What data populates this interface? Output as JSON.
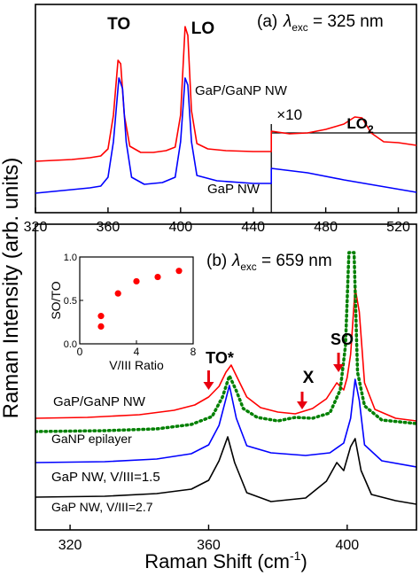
{
  "chart_data": [
    {
      "type": "line",
      "panel_label": "(a)",
      "excitation": {
        "symbol": "λ",
        "sub": "exc",
        "value": "= 325 nm"
      },
      "xlim": [
        320,
        530
      ],
      "xticks": [
        320,
        360,
        400,
        440,
        480,
        520
      ],
      "scale_mark": "×10",
      "peak_labels": [
        {
          "text": "TO",
          "x": 366
        },
        {
          "text": "LO",
          "x": 403
        },
        {
          "text": "LO",
          "sub": "2",
          "x": 500
        }
      ],
      "series": [
        {
          "name": "GaP/GaNP NW",
          "color": "#ff0000",
          "points": [
            [
              320,
              182
            ],
            [
              330,
              181
            ],
            [
              340,
              180
            ],
            [
              350,
              178
            ],
            [
              356,
              176
            ],
            [
              360,
              168
            ],
            [
              363,
              130
            ],
            [
              365.5,
              68
            ],
            [
              367,
              72
            ],
            [
              369,
              130
            ],
            [
              372,
              165
            ],
            [
              378,
              172
            ],
            [
              385,
              172
            ],
            [
              392,
              170
            ],
            [
              397,
              166
            ],
            [
              400,
              130
            ],
            [
              402.5,
              30
            ],
            [
              404,
              40
            ],
            [
              406,
              125
            ],
            [
              409,
              162
            ],
            [
              415,
              168
            ],
            [
              425,
              170
            ],
            [
              440,
              171
            ],
            [
              450,
              171
            ],
            [
              450,
              148
            ],
            [
              460,
              151
            ],
            [
              470,
              150
            ],
            [
              480,
              146
            ],
            [
              490,
              140
            ],
            [
              496,
              132
            ],
            [
              500,
              133
            ],
            [
              505,
              150
            ],
            [
              512,
              160
            ],
            [
              520,
              161
            ],
            [
              530,
              164
            ]
          ]
        },
        {
          "name": "GaP NW",
          "color": "#0000ff",
          "points": [
            [
              320,
              218
            ],
            [
              330,
              216
            ],
            [
              340,
              214
            ],
            [
              350,
              212
            ],
            [
              356,
              210
            ],
            [
              360,
              200
            ],
            [
              363,
              160
            ],
            [
              366,
              88
            ],
            [
              368,
              100
            ],
            [
              370,
              160
            ],
            [
              373,
              200
            ],
            [
              380,
              208
            ],
            [
              390,
              206
            ],
            [
              397,
              200
            ],
            [
              400,
              160
            ],
            [
              402.5,
              88
            ],
            [
              404,
              96
            ],
            [
              406,
              160
            ],
            [
              409,
              198
            ],
            [
              420,
              204
            ],
            [
              440,
              207
            ],
            [
              450,
              207
            ],
            [
              450,
              190
            ],
            [
              470,
              195
            ],
            [
              490,
              203
            ],
            [
              510,
              210
            ],
            [
              530,
              217
            ]
          ]
        }
      ]
    },
    {
      "type": "line",
      "panel_label": "(b)",
      "excitation": {
        "symbol": "λ",
        "sub": "exc",
        "value": "= 659 nm"
      },
      "xlim": [
        310,
        420
      ],
      "xticks": [
        320,
        360,
        400
      ],
      "xlabel": "Raman Shift (cm",
      "xlabel_sup": "-1",
      "xlabel_end": ")",
      "peak_labels": [
        {
          "text": "TO*",
          "x": 360
        },
        {
          "text": "X",
          "x": 387
        },
        {
          "text": "SO",
          "x": 397.5
        }
      ],
      "series": [
        {
          "name": "GaP/GaNP NW",
          "color": "#ff0000",
          "points": [
            [
              310,
              472
            ],
            [
              325,
              471
            ],
            [
              340,
              468
            ],
            [
              350,
              463
            ],
            [
              356,
              457
            ],
            [
              360,
              448
            ],
            [
              363,
              436
            ],
            [
              365,
              420
            ],
            [
              366.5,
              412
            ],
            [
              368,
              424
            ],
            [
              371,
              448
            ],
            [
              375,
              460
            ],
            [
              380,
              465
            ],
            [
              385,
              467
            ],
            [
              390,
              461
            ],
            [
              394,
              450
            ],
            [
              397,
              432
            ],
            [
              399,
              440
            ],
            [
              400,
              426
            ],
            [
              401,
              400
            ],
            [
              402.3,
              325
            ],
            [
              403.5,
              352
            ],
            [
              405,
              432
            ],
            [
              408,
              462
            ],
            [
              414,
              472
            ],
            [
              420,
              475
            ]
          ]
        },
        {
          "name": "GaNP epilayer",
          "color": "#008000",
          "dashed": true,
          "points": [
            [
              310,
              487
            ],
            [
              330,
              486
            ],
            [
              345,
              484
            ],
            [
              355,
              479
            ],
            [
              361,
              470
            ],
            [
              364,
              448
            ],
            [
              366,
              424
            ],
            [
              368,
              441
            ],
            [
              370,
              461
            ],
            [
              374,
              471
            ],
            [
              380,
              475
            ],
            [
              385,
              471
            ],
            [
              390,
              472
            ],
            [
              395,
              466
            ],
            [
              398,
              440
            ],
            [
              399.5,
              390
            ],
            [
              400.5,
              285
            ],
            [
              402,
              285
            ],
            [
              403,
              420
            ],
            [
              405,
              458
            ],
            [
              410,
              474
            ],
            [
              420,
              478
            ]
          ]
        },
        {
          "name": "GaP NW, V/III=1.5",
          "color": "#0000ff",
          "points": [
            [
              310,
              522
            ],
            [
              330,
              521
            ],
            [
              345,
              518
            ],
            [
              355,
              512
            ],
            [
              360,
              502
            ],
            [
              363,
              480
            ],
            [
              366,
              435
            ],
            [
              368,
              472
            ],
            [
              371,
              503
            ],
            [
              378,
              511
            ],
            [
              388,
              514
            ],
            [
              395,
              511
            ],
            [
              399,
              500
            ],
            [
              401,
              472
            ],
            [
              402.3,
              428
            ],
            [
              403.5,
              452
            ],
            [
              405,
              502
            ],
            [
              410,
              520
            ],
            [
              420,
              527
            ]
          ]
        },
        {
          "name": "GaP NW, V/III=2.7",
          "color": "#000000",
          "points": [
            [
              310,
              561
            ],
            [
              330,
              560
            ],
            [
              345,
              557
            ],
            [
              355,
              552
            ],
            [
              360,
              542
            ],
            [
              363,
              520
            ],
            [
              365.5,
              493
            ],
            [
              367.5,
              522
            ],
            [
              371,
              556
            ],
            [
              378,
              566
            ],
            [
              388,
              562
            ],
            [
              394,
              543
            ],
            [
              397,
              522
            ],
            [
              399,
              531
            ],
            [
              401,
              504
            ],
            [
              402.3,
              495
            ],
            [
              404,
              531
            ],
            [
              407,
              558
            ],
            [
              414,
              565
            ],
            [
              420,
              569
            ]
          ]
        }
      ],
      "inset": {
        "type": "scatter",
        "xlabel": "V/III Ratio",
        "ylabel": "SO/TO",
        "xlim": [
          0,
          8
        ],
        "ylim": [
          0,
          1.0
        ],
        "xticks": [
          0,
          4,
          8
        ],
        "yticks": [
          0.0,
          0.5,
          1.0
        ],
        "ytick_labels": [
          "0.0",
          "0.5",
          "1.0"
        ],
        "color": "#ff0000",
        "points": [
          [
            1.5,
            0.2
          ],
          [
            1.5,
            0.32
          ],
          [
            2.7,
            0.58
          ],
          [
            4.0,
            0.72
          ],
          [
            5.5,
            0.77
          ],
          [
            7.0,
            0.84
          ]
        ]
      }
    }
  ],
  "ylabel": "Raman Intensity (arb. units)"
}
